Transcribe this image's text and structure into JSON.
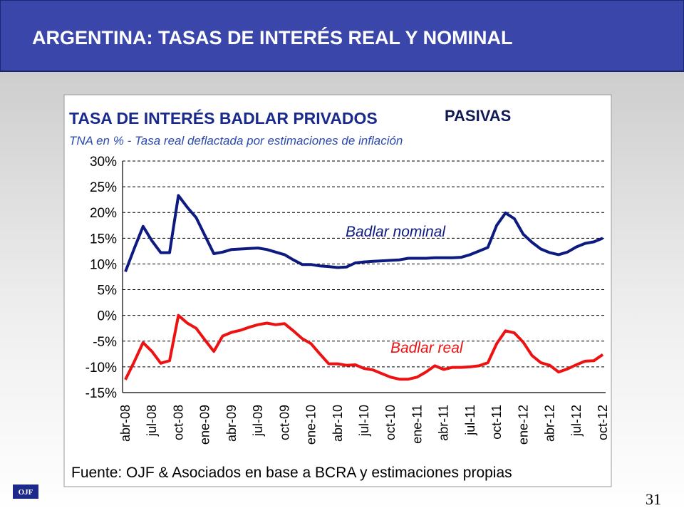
{
  "header": {
    "title": "ARGENTINA: TASAS DE INTERÉS REAL Y NOMINAL"
  },
  "chart_data": {
    "type": "line",
    "title": "TASA DE INTERÉS BADLAR PRIVADOS",
    "title_suffix": "PASIVAS",
    "subtitle": "TNA en % - Tasa real deflactada por estimaciones de inflación",
    "categories": [
      "abr-08",
      null,
      null,
      "jul-08",
      null,
      null,
      "oct-08",
      null,
      null,
      "ene-09",
      null,
      null,
      "abr-09",
      null,
      null,
      "jul-09",
      null,
      null,
      "oct-09",
      null,
      null,
      "ene-10",
      null,
      null,
      "abr-10",
      null,
      null,
      "jul-10",
      null,
      null,
      "oct-10",
      null,
      null,
      "ene-11",
      null,
      null,
      "abr-11",
      null,
      null,
      "jul-11",
      null,
      null,
      "oct-11",
      null,
      null,
      "ene-12",
      null,
      null,
      "abr-12",
      null,
      null,
      "jul-12",
      null,
      null,
      "oct-12"
    ],
    "series": [
      {
        "name": "Badlar nominal",
        "color": "#0d1a80",
        "values": [
          8.5,
          13,
          17.3,
          14.5,
          12.2,
          12.2,
          23.3,
          21,
          19,
          15.5,
          12,
          12.3,
          12.8,
          12.9,
          13,
          13.1,
          12.8,
          12.3,
          11.8,
          10.8,
          9.9,
          9.9,
          9.6,
          9.5,
          9.3,
          9.4,
          10.2,
          10.4,
          10.5,
          10.6,
          10.7,
          10.8,
          11.1,
          11.1,
          11.1,
          11.2,
          11.2,
          11.2,
          11.3,
          11.8,
          12.5,
          13.2,
          17.5,
          19.9,
          18.8,
          15.8,
          14.2,
          12.9,
          12.2,
          11.8,
          12.3,
          13.3,
          14,
          14.3,
          15
        ]
      },
      {
        "name": "Badlar real",
        "color": "#ee1111",
        "values": [
          -12.5,
          -9,
          -5.3,
          -7,
          -9.3,
          -8.8,
          0,
          -1.5,
          -2.5,
          -4.8,
          -7,
          -4,
          -3.3,
          -2.9,
          -2.3,
          -1.8,
          -1.5,
          -1.8,
          -1.6,
          -3,
          -4.5,
          -5.5,
          -7.5,
          -9.4,
          -9.4,
          -9.7,
          -9.6,
          -10.3,
          -10.6,
          -11.3,
          -12,
          -12.4,
          -12.4,
          -12,
          -11,
          -9.8,
          -10.5,
          -10.1,
          -10.1,
          -10,
          -9.8,
          -9.2,
          -5.5,
          -3,
          -3.4,
          -5.2,
          -7.8,
          -9.2,
          -9.7,
          -11,
          -10.4,
          -9.6,
          -8.9,
          -8.8,
          -7.6
        ]
      }
    ],
    "ylim": [
      -15,
      30
    ],
    "yticks": [
      {
        "value": -15,
        "label": "-15%"
      },
      {
        "value": -10,
        "label": "-10%"
      },
      {
        "value": -5,
        "label": "-5%"
      },
      {
        "value": 0,
        "label": "0%"
      },
      {
        "value": 5,
        "label": "5%"
      },
      {
        "value": 10,
        "label": "10%"
      },
      {
        "value": 15,
        "label": "15%"
      },
      {
        "value": 20,
        "label": "20%"
      },
      {
        "value": 25,
        "label": "25%"
      },
      {
        "value": 30,
        "label": "30%"
      }
    ],
    "grid": true,
    "source": "Fuente: OJF & Asociados en base a BCRA y estimaciones propias"
  },
  "footer": {
    "logo": "OJF",
    "page_number": "31"
  }
}
